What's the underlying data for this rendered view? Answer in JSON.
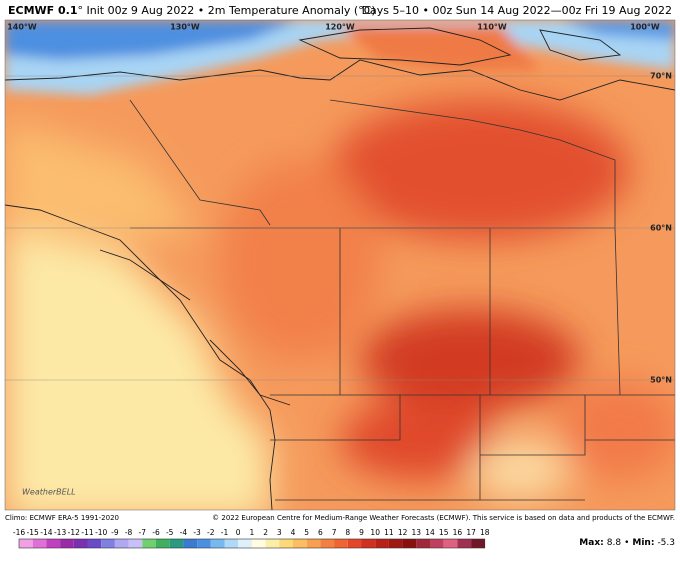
{
  "header": {
    "model": "ECMWF 0.1",
    "left_rest": "° Init 00z 9 Aug 2022 • 2m Temperature Anomaly (°C)",
    "right": "Days 5–10 • 00z Sun 14 Aug 2022—00z Fri 19 Aug 2022"
  },
  "map": {
    "lon_labels": [
      "140°W",
      "130°W",
      "120°W",
      "110°W",
      "100°W"
    ],
    "lat_labels": [
      "70°N",
      "60°N",
      "50°N"
    ],
    "logo": "WeatherBELL"
  },
  "footer": {
    "climo": "Climo: ECMWF ERA-5 1991-2020",
    "copyright": "© 2022 European Centre for Medium-Range Weather Forecasts (ECMWF). This service is based on data and products of the ECMWF."
  },
  "colorbar": {
    "ticks": [
      -16,
      -15,
      -14,
      -13,
      -12,
      -11,
      -10,
      -9,
      -8,
      -7,
      -6,
      -5,
      -4,
      -3,
      -2,
      -1,
      0,
      1,
      2,
      3,
      4,
      5,
      6,
      7,
      8,
      9,
      10,
      11,
      12,
      13,
      14,
      15,
      16,
      17,
      18
    ],
    "colors": [
      "#f2a0e6",
      "#e070d8",
      "#c040c0",
      "#9a2aa8",
      "#7a30b0",
      "#6a4ac8",
      "#8080e0",
      "#b0a8f0",
      "#c8c0f8",
      "#70d070",
      "#40b060",
      "#2a9a80",
      "#3a7ad0",
      "#4a90e0",
      "#78b8f0",
      "#b0d8f8",
      "#e0f0fa",
      "#fffce0",
      "#fbeea8",
      "#fcd878",
      "#fbbe60",
      "#f8a050",
      "#f48040",
      "#ef6432",
      "#e4462a",
      "#cf3020",
      "#b82018",
      "#a01812",
      "#88100e",
      "#a02838",
      "#c04060",
      "#e06080",
      "#a03050",
      "#701828"
    ]
  },
  "stats": {
    "max_label": "Max:",
    "max": 8.8,
    "sep": "•",
    "min_label": "Min:",
    "min": -5.3
  }
}
